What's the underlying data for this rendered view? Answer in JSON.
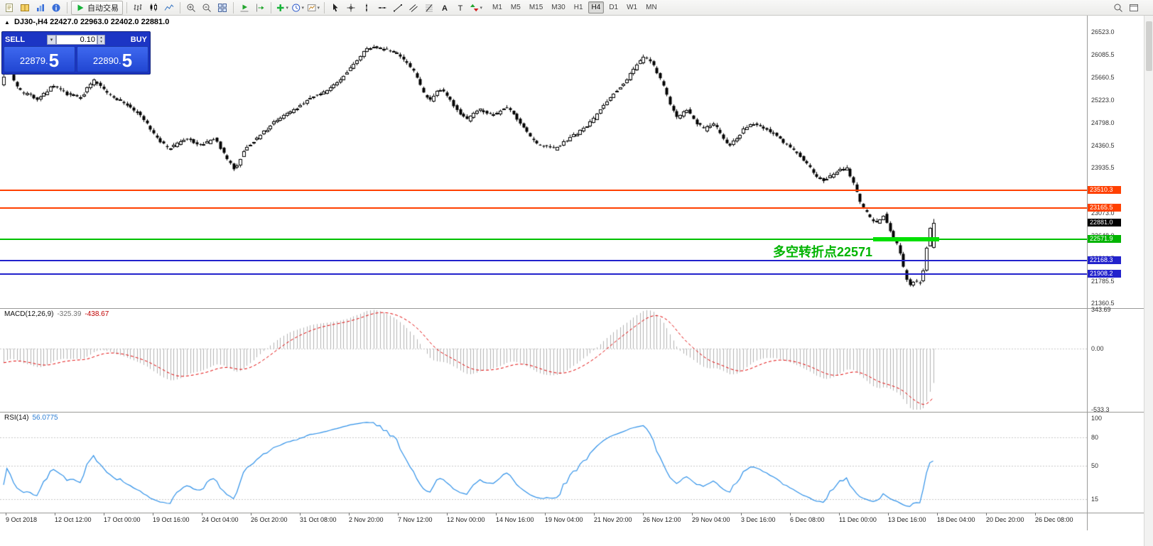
{
  "toolbar": {
    "autotrading_label": "自动交易",
    "timeframes": [
      "M1",
      "M5",
      "M15",
      "M30",
      "H1",
      "H4",
      "D1",
      "W1",
      "MN"
    ],
    "active_timeframe": "H4",
    "groups": [
      {
        "name": "panels",
        "items": [
          {
            "name": "new-order-icon",
            "glyph": "doc"
          },
          {
            "name": "market-watch-icon",
            "glyph": "book"
          },
          {
            "name": "navigator-icon",
            "glyph": "chart"
          },
          {
            "name": "terminal-icon",
            "glyph": "info"
          }
        ]
      },
      {
        "name": "autotrading",
        "items": [
          {
            "name": "autotrading-button",
            "glyph": "play",
            "with_label": true
          }
        ]
      },
      {
        "name": "chart-type",
        "items": [
          {
            "name": "bar-chart-icon",
            "glyph": "bars"
          },
          {
            "name": "candlestick-icon",
            "glyph": "candles"
          },
          {
            "name": "line-chart-icon",
            "glyph": "linechart"
          }
        ]
      },
      {
        "name": "zoom",
        "items": [
          {
            "name": "zoom-in-icon",
            "glyph": "zoomin"
          },
          {
            "name": "zoom-out-icon",
            "glyph": "zoomout"
          },
          {
            "name": "tile-windows-icon",
            "glyph": "tile"
          }
        ]
      },
      {
        "name": "scroll",
        "items": [
          {
            "name": "auto-scroll-icon",
            "glyph": "autoscroll"
          },
          {
            "name": "chart-shift-icon",
            "glyph": "shift"
          }
        ]
      },
      {
        "name": "insert",
        "items": [
          {
            "name": "indicators-icon",
            "glyph": "plus",
            "caret": true
          },
          {
            "name": "periods-icon",
            "glyph": "clock",
            "caret": true
          },
          {
            "name": "templates-icon",
            "glyph": "template",
            "caret": true
          }
        ]
      },
      {
        "name": "draw",
        "items": [
          {
            "name": "cursor-icon",
            "glyph": "cursor"
          },
          {
            "name": "crosshair-icon",
            "glyph": "cross"
          },
          {
            "name": "vertical-line-icon",
            "glyph": "vline"
          },
          {
            "name": "horizontal-line-icon",
            "glyph": "hline"
          },
          {
            "name": "trendline-icon",
            "glyph": "tline"
          },
          {
            "name": "channel-icon",
            "glyph": "channel"
          },
          {
            "name": "fibonacci-icon",
            "glyph": "fibo"
          },
          {
            "name": "text-icon",
            "glyph": "textA"
          },
          {
            "name": "label-icon",
            "glyph": "labelT"
          },
          {
            "name": "arrows-icon",
            "glyph": "arrows",
            "caret": true
          }
        ]
      }
    ],
    "right_icons": [
      {
        "name": "search-icon",
        "glyph": "search"
      },
      {
        "name": "window-icon",
        "glyph": "win"
      }
    ]
  },
  "chart_header": {
    "symbol_period": "DJ30-,H4",
    "ohlc": "22427.0 22963.0 22402.0 22881.0"
  },
  "trade_panel": {
    "sell_label": "SELL",
    "buy_label": "BUY",
    "volume": "0.10",
    "sell_price_main": "22879.",
    "sell_price_big": "5",
    "buy_price_main": "22890.",
    "buy_price_big": "5"
  },
  "annotation": {
    "text": "多空转折点22571",
    "color": "#00b400"
  },
  "price_axis": {
    "labels": [
      {
        "text": "26523.0",
        "price": 26523.0
      },
      {
        "text": "26085.5",
        "price": 26085.5
      },
      {
        "text": "25660.5",
        "price": 25660.5
      },
      {
        "text": "25223.0",
        "price": 25223.0
      },
      {
        "text": "24798.0",
        "price": 24798.0
      },
      {
        "text": "24360.5",
        "price": 24360.5
      },
      {
        "text": "23935.5",
        "price": 23935.5
      },
      {
        "text": "23073.0",
        "price": 23073.0
      },
      {
        "text": "22648.0",
        "price": 22648.0
      },
      {
        "text": "22210.5",
        "price": 22210.5
      },
      {
        "text": "21785.5",
        "price": 21785.5
      },
      {
        "text": "21360.5",
        "price": 21360.5
      }
    ],
    "badges": [
      {
        "text": "23510.3",
        "price": 23510.3,
        "bg": "#ff4000"
      },
      {
        "text": "23165.5",
        "price": 23165.5,
        "bg": "#ff4000"
      },
      {
        "text": "22881.0",
        "price": 22881.0,
        "bg": "#000000"
      },
      {
        "text": "22571.9",
        "price": 22571.9,
        "bg": "#00b400"
      },
      {
        "text": "22168.3",
        "price": 22168.3,
        "bg": "#2222cc"
      },
      {
        "text": "21908.2",
        "price": 21908.2,
        "bg": "#2222cc"
      }
    ]
  },
  "chart_data": {
    "type": "candlestick",
    "symbol": "DJ30-",
    "timeframe": "H4",
    "y_range": [
      21360.5,
      26523.0
    ],
    "num_candles": 280,
    "current_bar_ohlc": {
      "o": 22427.0,
      "h": 22963.0,
      "l": 22402.0,
      "c": 22881.0
    },
    "current_price": 22881.0,
    "price_path_anchors": [
      [
        0,
        25550
      ],
      [
        0.006,
        25850
      ],
      [
        0.02,
        25400
      ],
      [
        0.04,
        25250
      ],
      [
        0.055,
        25500
      ],
      [
        0.07,
        25350
      ],
      [
        0.085,
        25280
      ],
      [
        0.1,
        25600
      ],
      [
        0.115,
        25350
      ],
      [
        0.13,
        25200
      ],
      [
        0.15,
        24950
      ],
      [
        0.165,
        24550
      ],
      [
        0.18,
        24300
      ],
      [
        0.2,
        24500
      ],
      [
        0.215,
        24350
      ],
      [
        0.23,
        24500
      ],
      [
        0.245,
        24050
      ],
      [
        0.252,
        23900
      ],
      [
        0.262,
        24300
      ],
      [
        0.275,
        24500
      ],
      [
        0.29,
        24750
      ],
      [
        0.305,
        24950
      ],
      [
        0.32,
        25100
      ],
      [
        0.335,
        25300
      ],
      [
        0.35,
        25400
      ],
      [
        0.365,
        25600
      ],
      [
        0.378,
        25900
      ],
      [
        0.39,
        26150
      ],
      [
        0.4,
        26250
      ],
      [
        0.412,
        26200
      ],
      [
        0.425,
        26150
      ],
      [
        0.435,
        25950
      ],
      [
        0.445,
        25750
      ],
      [
        0.455,
        25350
      ],
      [
        0.462,
        25200
      ],
      [
        0.472,
        25450
      ],
      [
        0.482,
        25250
      ],
      [
        0.492,
        25000
      ],
      [
        0.502,
        24850
      ],
      [
        0.512,
        25050
      ],
      [
        0.522,
        25000
      ],
      [
        0.532,
        24950
      ],
      [
        0.542,
        25100
      ],
      [
        0.552,
        24950
      ],
      [
        0.562,
        24700
      ],
      [
        0.572,
        24450
      ],
      [
        0.582,
        24350
      ],
      [
        0.595,
        24300
      ],
      [
        0.608,
        24450
      ],
      [
        0.62,
        24600
      ],
      [
        0.632,
        24750
      ],
      [
        0.645,
        25050
      ],
      [
        0.658,
        25350
      ],
      [
        0.67,
        25550
      ],
      [
        0.682,
        25850
      ],
      [
        0.692,
        26050
      ],
      [
        0.7,
        25950
      ],
      [
        0.71,
        25600
      ],
      [
        0.72,
        25150
      ],
      [
        0.728,
        24900
      ],
      [
        0.738,
        25050
      ],
      [
        0.748,
        24800
      ],
      [
        0.757,
        24650
      ],
      [
        0.766,
        24800
      ],
      [
        0.775,
        24550
      ],
      [
        0.783,
        24350
      ],
      [
        0.792,
        24500
      ],
      [
        0.8,
        24700
      ],
      [
        0.81,
        24800
      ],
      [
        0.82,
        24700
      ],
      [
        0.83,
        24600
      ],
      [
        0.84,
        24450
      ],
      [
        0.85,
        24300
      ],
      [
        0.86,
        24150
      ],
      [
        0.87,
        23950
      ],
      [
        0.878,
        23750
      ],
      [
        0.886,
        23700
      ],
      [
        0.894,
        23800
      ],
      [
        0.902,
        23900
      ],
      [
        0.91,
        23940
      ],
      [
        0.917,
        23650
      ],
      [
        0.924,
        23300
      ],
      [
        0.93,
        23100
      ],
      [
        0.937,
        22950
      ],
      [
        0.944,
        22900
      ],
      [
        0.95,
        23050
      ],
      [
        0.956,
        22750
      ],
      [
        0.962,
        22550
      ],
      [
        0.968,
        22300
      ],
      [
        0.973,
        21850
      ],
      [
        0.978,
        21700
      ],
      [
        0.983,
        21800
      ],
      [
        0.988,
        21700
      ],
      [
        0.992,
        21900
      ],
      [
        0.996,
        22400
      ],
      [
        1,
        22881
      ]
    ],
    "horizontal_lines": [
      {
        "name": "resistance-line-1",
        "price": 23510.3,
        "color": "#ff4000"
      },
      {
        "name": "resistance-line-2",
        "price": 23165.5,
        "color": "#ff4000"
      },
      {
        "name": "pivot-line",
        "price": 22571.9,
        "color": "#00c000",
        "highlight_segment": {
          "x_start_frac": 0.803,
          "x_end_frac": 0.864,
          "color": "#00e000"
        }
      },
      {
        "name": "support-line-1",
        "price": 22168.3,
        "color": "#2222cc"
      },
      {
        "name": "support-line-2",
        "price": 21908.2,
        "color": "#2222cc"
      }
    ],
    "x_labels": [
      "9 Oct 2018",
      "12 Oct 12:00",
      "17 Oct 00:00",
      "19 Oct 16:00",
      "24 Oct 04:00",
      "26 Oct 20:00",
      "31 Oct 08:00",
      "2 Nov 20:00",
      "7 Nov 12:00",
      "12 Nov 00:00",
      "14 Nov 16:00",
      "19 Nov 04:00",
      "21 Nov 20:00",
      "26 Nov 12:00",
      "29 Nov 04:00",
      "3 Dec 16:00",
      "6 Dec 08:00",
      "11 Dec 00:00",
      "13 Dec 16:00",
      "18 Dec 04:00",
      "20 Dec 20:00",
      "26 Dec 08:00"
    ],
    "indicators": [
      {
        "type": "macd",
        "label": "MACD(12,26,9)",
        "value_main": "-325.39",
        "value_signal": "-438.67",
        "params": [
          12,
          26,
          9
        ],
        "axis_labels": [
          {
            "text": "343.69",
            "value": 343.69
          },
          {
            "text": "0.00",
            "value": 0
          },
          {
            "text": "-533.3",
            "value": -533.3
          }
        ],
        "histogram_color": "#b2b2b2",
        "signal_color": "#e00000"
      },
      {
        "type": "rsi",
        "label": "RSI(14)",
        "value": "56.0775",
        "period": 14,
        "axis_labels": [
          {
            "text": "100",
            "value": 100
          },
          {
            "text": "80",
            "value": 80
          },
          {
            "text": "50",
            "value": 50
          },
          {
            "text": "15",
            "value": 15
          }
        ],
        "levels": [
          80,
          50,
          15
        ],
        "line_color": "#2e90e8"
      }
    ]
  }
}
